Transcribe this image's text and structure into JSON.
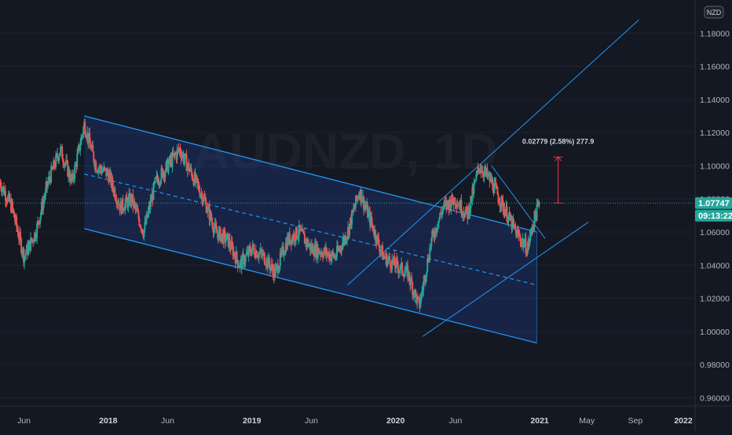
{
  "header": {
    "currency_badge": "NZD"
  },
  "watermark": "AUDNZD, 1D",
  "chart_data": {
    "type": "candlestick",
    "symbol": "AUDNZD",
    "timeframe": "1D",
    "quote_currency": "NZD",
    "x_ticks": [
      "Jun",
      "2018",
      "Jun",
      "2019",
      "Jun",
      "2020",
      "Jun",
      "2021",
      "May",
      "Sep",
      "2022"
    ],
    "y_ticks": [
      "1.18000",
      "1.16000",
      "1.14000",
      "1.12000",
      "1.10000",
      "1.08000",
      "1.06000",
      "1.04000",
      "1.02000",
      "1.00000",
      "0.98000",
      "0.96000"
    ],
    "ylim": [
      0.955,
      1.2
    ],
    "last_price": {
      "value": 1.07747,
      "label": "1.07747",
      "countdown": "09:13:22",
      "color": "#26a69a"
    },
    "price_range_annotation": {
      "text": "0.02779 (2.58%) 277.9",
      "from": 1.07747,
      "to": 1.10526,
      "color": "#f23645"
    },
    "path_points": [
      [
        "2017-04-01",
        1.09
      ],
      [
        "2017-05-01",
        1.075
      ],
      [
        "2017-06-01",
        1.045
      ],
      [
        "2017-07-01",
        1.06
      ],
      [
        "2017-08-01",
        1.09
      ],
      [
        "2017-09-01",
        1.11
      ],
      [
        "2017-10-01",
        1.09
      ],
      [
        "2017-11-01",
        1.125
      ],
      [
        "2017-12-01",
        1.1
      ],
      [
        "2018-01-01",
        1.095
      ],
      [
        "2018-02-01",
        1.075
      ],
      [
        "2018-03-01",
        1.08
      ],
      [
        "2018-04-01",
        1.06
      ],
      [
        "2018-05-01",
        1.09
      ],
      [
        "2018-06-01",
        1.1
      ],
      [
        "2018-07-01",
        1.11
      ],
      [
        "2018-08-01",
        1.095
      ],
      [
        "2018-09-01",
        1.08
      ],
      [
        "2018-10-01",
        1.06
      ],
      [
        "2018-11-01",
        1.055
      ],
      [
        "2018-12-01",
        1.04
      ],
      [
        "2019-01-01",
        1.05
      ],
      [
        "2019-02-01",
        1.045
      ],
      [
        "2019-03-01",
        1.035
      ],
      [
        "2019-04-01",
        1.055
      ],
      [
        "2019-05-01",
        1.06
      ],
      [
        "2019-06-01",
        1.05
      ],
      [
        "2019-07-01",
        1.048
      ],
      [
        "2019-08-01",
        1.045
      ],
      [
        "2019-09-01",
        1.06
      ],
      [
        "2019-10-01",
        1.085
      ],
      [
        "2019-11-01",
        1.065
      ],
      [
        "2019-12-01",
        1.045
      ],
      [
        "2020-01-01",
        1.04
      ],
      [
        "2020-02-01",
        1.035
      ],
      [
        "2020-03-01",
        1.015
      ],
      [
        "2020-04-01",
        1.055
      ],
      [
        "2020-05-01",
        1.075
      ],
      [
        "2020-06-01",
        1.08
      ],
      [
        "2020-07-01",
        1.07
      ],
      [
        "2020-08-01",
        1.1
      ],
      [
        "2020-09-01",
        1.09
      ],
      [
        "2020-10-01",
        1.075
      ],
      [
        "2020-11-01",
        1.06
      ],
      [
        "2020-12-01",
        1.05
      ],
      [
        "2020-12-15",
        1.065
      ],
      [
        "2020-12-31",
        1.07747
      ]
    ],
    "drawings": [
      {
        "type": "channel-upper",
        "from": [
          "2017-11-01",
          1.13
        ],
        "to": [
          "2020-12-25",
          1.06
        ]
      },
      {
        "type": "channel-mid",
        "from": [
          "2017-11-01",
          1.095
        ],
        "to": [
          "2020-12-25",
          1.028
        ]
      },
      {
        "type": "channel-lower",
        "from": [
          "2017-11-01",
          1.062
        ],
        "to": [
          "2020-12-25",
          0.993
        ]
      },
      {
        "type": "trendline",
        "from": [
          "2019-09-01",
          1.028
        ],
        "to": [
          "2021-09-10",
          1.188
        ]
      },
      {
        "type": "trendline",
        "from": [
          "2020-03-10",
          0.997
        ],
        "to": [
          "2021-05-05",
          1.066
        ]
      },
      {
        "type": "trendline",
        "from": [
          "2020-09-01",
          1.1
        ],
        "to": [
          "2021-01-15",
          1.056
        ]
      }
    ]
  }
}
